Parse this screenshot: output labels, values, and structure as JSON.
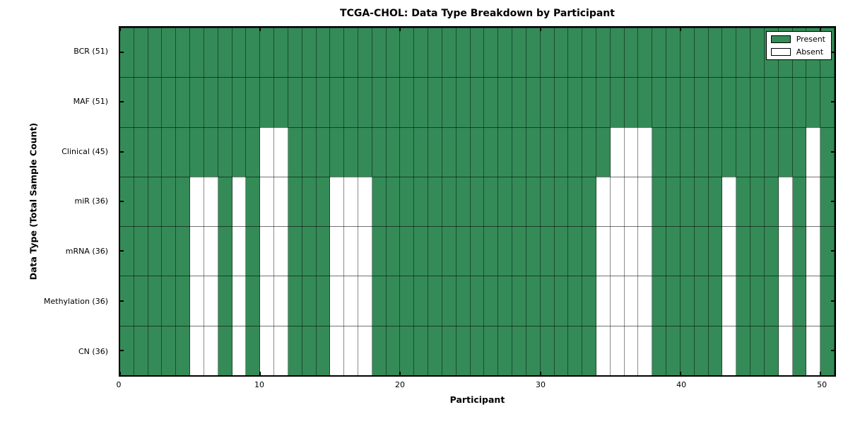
{
  "title": "TCGA-CHOL: Data Type Breakdown by Participant",
  "axes": {
    "xlabel": "Participant",
    "ylabel": "Data Type (Total Sample Count)"
  },
  "chart_data": {
    "type": "heatmap",
    "title": "TCGA-CHOL: Data Type Breakdown by Participant",
    "xlabel": "Participant",
    "ylabel": "Data Type (Total Sample Count)",
    "x_range": [
      0,
      51
    ],
    "x_ticks": [
      0,
      10,
      20,
      30,
      40,
      50
    ],
    "n_participants": 51,
    "grid": true,
    "legend_position": "upper right",
    "colors": {
      "present": "#348b57",
      "absent": "#ffffff",
      "frame": "#000000"
    },
    "legend": [
      {
        "label": "Present",
        "state": "present",
        "color": "#348b57"
      },
      {
        "label": "Absent",
        "state": "absent",
        "color": "#ffffff"
      }
    ],
    "rows": [
      {
        "label": "BCR (51)",
        "data_type": "BCR",
        "total_samples": 51,
        "absent_participants": []
      },
      {
        "label": "MAF (51)",
        "data_type": "MAF",
        "total_samples": 51,
        "absent_participants": []
      },
      {
        "label": "Clinical (45)",
        "data_type": "Clinical",
        "total_samples": 45,
        "absent_participants": [
          10,
          11,
          35,
          36,
          37,
          49
        ]
      },
      {
        "label": "miR (36)",
        "data_type": "miR",
        "total_samples": 36,
        "absent_participants": [
          5,
          6,
          8,
          10,
          11,
          15,
          16,
          17,
          34,
          35,
          36,
          37,
          43,
          47,
          49
        ]
      },
      {
        "label": "mRNA (36)",
        "data_type": "mRNA",
        "total_samples": 36,
        "absent_participants": [
          5,
          6,
          8,
          10,
          11,
          15,
          16,
          17,
          34,
          35,
          36,
          37,
          43,
          47,
          49
        ]
      },
      {
        "label": "Methylation (36)",
        "data_type": "Methylation",
        "total_samples": 36,
        "absent_participants": [
          5,
          6,
          8,
          10,
          11,
          15,
          16,
          17,
          34,
          35,
          36,
          37,
          43,
          47,
          49
        ]
      },
      {
        "label": "CN (36)",
        "data_type": "CN",
        "total_samples": 36,
        "absent_participants": [
          5,
          6,
          8,
          10,
          11,
          15,
          16,
          17,
          34,
          35,
          36,
          37,
          43,
          47,
          49
        ]
      }
    ]
  }
}
